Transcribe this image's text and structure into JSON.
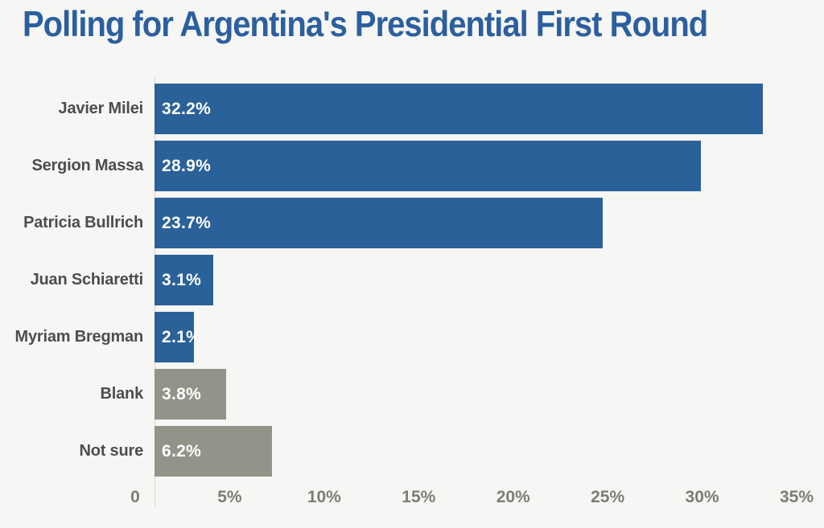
{
  "page": {
    "background": "#f6f6f4"
  },
  "chart_data": {
    "type": "bar",
    "orientation": "horizontal",
    "title": "Polling for Argentina's Presidential First Round",
    "categories": [
      "Javier Milei",
      "Sergion Massa",
      "Patricia Bullrich",
      "Juan Schiaretti",
      "Myriam Bregman",
      "Blank",
      "Not sure"
    ],
    "values": [
      32.2,
      28.9,
      23.7,
      3.1,
      2.1,
      3.8,
      6.2
    ],
    "value_labels": [
      "32.2%",
      "28.9%",
      "23.7%",
      "3.1%",
      "2.1%",
      "3.8%",
      "6.2%"
    ],
    "bar_colors": [
      "#2a6199",
      "#2a6199",
      "#2a6199",
      "#2a6199",
      "#2a6199",
      "#929489",
      "#929489"
    ],
    "xlabel": "",
    "ylabel": "",
    "xlim": [
      0,
      35
    ],
    "x_ticks": [
      {
        "value": 0,
        "label": "0"
      },
      {
        "value": 5,
        "label": "5%"
      },
      {
        "value": 10,
        "label": "10%"
      },
      {
        "value": 15,
        "label": "15%"
      },
      {
        "value": 20,
        "label": "20%"
      },
      {
        "value": 25,
        "label": "25%"
      },
      {
        "value": 30,
        "label": "30%"
      },
      {
        "value": 35,
        "label": "35%"
      }
    ],
    "grid": "off",
    "legend": "none",
    "colors": {
      "candidate_bar": "#2a6199",
      "other_bar": "#929489",
      "title_text": "#2b5f9f",
      "value_label_text": "#ffffff",
      "category_label_text": "#4d4d4d",
      "tick_label_text": "#7e7c73",
      "axis_line": "#d7d6d2",
      "background": "#f6f6f4"
    }
  }
}
